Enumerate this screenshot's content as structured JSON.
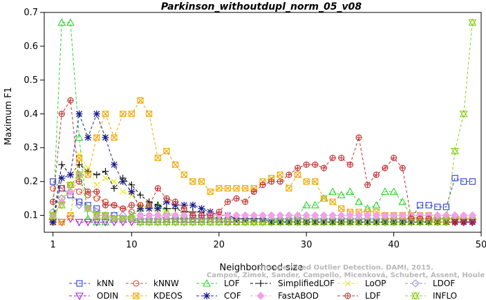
{
  "chart_data": {
    "type": "line",
    "title": "Parkinson_withoutdupl_norm_05_v08",
    "xlabel": "Neighborhood size",
    "ylabel": "Maximum F1",
    "xlim": [
      0,
      50
    ],
    "ylim": [
      0.05,
      0.7
    ],
    "xticks": [
      1,
      10,
      20,
      30,
      40,
      50
    ],
    "yticks": [
      0.1,
      0.2,
      0.3,
      0.4,
      0.5,
      0.6,
      0.7
    ],
    "grid": false,
    "legend_position": "bottom",
    "watermark": [
      "Campos, Zimek, Sander, Campello, Micenková, Schubert, Assent, Houle",
      "Unsupervised Outlier Detection. DAMI, 2015."
    ],
    "series": [
      {
        "name": "kNN",
        "color": "#2a3fd6",
        "marker": "square",
        "x": [
          1,
          2,
          3,
          4,
          5,
          6,
          7,
          8,
          9,
          10,
          11,
          12,
          13,
          14,
          15,
          16,
          17,
          18,
          19,
          20,
          21,
          22,
          23,
          24,
          25,
          26,
          27,
          28,
          29,
          30,
          31,
          32,
          33,
          34,
          35,
          36,
          37,
          38,
          39,
          40,
          41,
          42,
          43,
          44,
          45,
          46,
          47,
          48,
          49
        ],
        "y": [
          0.2,
          0.18,
          0.16,
          0.14,
          0.13,
          0.12,
          0.1,
          0.1,
          0.09,
          0.09,
          0.08,
          0.08,
          0.08,
          0.08,
          0.08,
          0.08,
          0.08,
          0.08,
          0.08,
          0.08,
          0.08,
          0.08,
          0.08,
          0.08,
          0.08,
          0.08,
          0.08,
          0.08,
          0.08,
          0.08,
          0.08,
          0.08,
          0.08,
          0.08,
          0.08,
          0.08,
          0.08,
          0.08,
          0.08,
          0.08,
          0.08,
          0.09,
          0.13,
          0.13,
          0.125,
          0.125,
          0.21,
          0.2,
          0.2
        ]
      },
      {
        "name": "kNNW",
        "color": "#e23a2a",
        "marker": "circle",
        "x": [
          1,
          2,
          3,
          4,
          5,
          6,
          7,
          8,
          9,
          10,
          11,
          12,
          13,
          14,
          15,
          16,
          17,
          18,
          19,
          20,
          21,
          22,
          23,
          24,
          25,
          26,
          27,
          28,
          29,
          30,
          31,
          32,
          33,
          34,
          35,
          36,
          37,
          38,
          39,
          40,
          41,
          42,
          43,
          44,
          45,
          46,
          47,
          48,
          49
        ],
        "y": [
          0.18,
          0.18,
          0.19,
          0.17,
          0.16,
          0.15,
          0.14,
          0.13,
          0.12,
          0.11,
          0.1,
          0.1,
          0.1,
          0.09,
          0.09,
          0.09,
          0.09,
          0.09,
          0.09,
          0.09,
          0.08,
          0.08,
          0.08,
          0.08,
          0.08,
          0.08,
          0.08,
          0.08,
          0.08,
          0.08,
          0.08,
          0.08,
          0.08,
          0.08,
          0.08,
          0.08,
          0.08,
          0.08,
          0.08,
          0.08,
          0.08,
          0.08,
          0.08,
          0.08,
          0.08,
          0.08,
          0.08,
          0.08,
          0.08
        ]
      },
      {
        "name": "LOF",
        "color": "#2ad62a",
        "marker": "triangle-up",
        "x": [
          1,
          2,
          3,
          4,
          5,
          6,
          7,
          8,
          9,
          10,
          11,
          12,
          13,
          14,
          15,
          16,
          17,
          18,
          19,
          20,
          21,
          22,
          23,
          24,
          25,
          26,
          27,
          28,
          29,
          30,
          31,
          32,
          33,
          34,
          35,
          36,
          37,
          38,
          39,
          40,
          41,
          42,
          43,
          44,
          45,
          46,
          47,
          48,
          49
        ],
        "y": [
          0.1,
          0.67,
          0.67,
          0.33,
          0.09,
          0.08,
          0.08,
          0.09,
          0.09,
          0.1,
          0.12,
          0.13,
          0.13,
          0.11,
          0.1,
          0.1,
          0.1,
          0.1,
          0.1,
          0.09,
          0.09,
          0.09,
          0.08,
          0.08,
          0.08,
          0.08,
          0.09,
          0.09,
          0.1,
          0.13,
          0.13,
          0.15,
          0.17,
          0.16,
          0.17,
          0.14,
          0.12,
          0.13,
          0.17,
          0.17,
          0.14,
          0.1,
          0.09,
          0.09,
          0.1,
          0.1,
          0.1,
          0.09,
          0.09
        ]
      },
      {
        "name": "SimplifiedLOF",
        "color": "#000000",
        "marker": "plus",
        "x": [
          1,
          2,
          3,
          4,
          5,
          6,
          7,
          8,
          9,
          10,
          11,
          12,
          13,
          14,
          15,
          16,
          17,
          18,
          19,
          20,
          21,
          22,
          23,
          24,
          25,
          26,
          27,
          28,
          29,
          30,
          31,
          32,
          33,
          34,
          35,
          36,
          37,
          38,
          39,
          40,
          41,
          42,
          43,
          44,
          45,
          46,
          47,
          48,
          49
        ],
        "y": [
          0.08,
          0.25,
          0.22,
          0.25,
          0.23,
          0.22,
          0.23,
          0.18,
          0.21,
          0.19,
          0.16,
          0.14,
          0.13,
          0.12,
          0.12,
          0.11,
          0.11,
          0.11,
          0.1,
          0.1,
          0.1,
          0.09,
          0.09,
          0.09,
          0.09,
          0.08,
          0.08,
          0.08,
          0.08,
          0.08,
          0.08,
          0.08,
          0.08,
          0.08,
          0.08,
          0.08,
          0.08,
          0.08,
          0.08,
          0.08,
          0.08,
          0.08,
          0.08,
          0.08,
          0.08,
          0.08,
          0.08,
          0.08,
          0.08
        ]
      },
      {
        "name": "LoOP",
        "color": "#e8e81a",
        "marker": "x",
        "x": [
          1,
          2,
          3,
          4,
          5,
          6,
          7,
          8,
          9,
          10,
          11,
          12,
          13,
          14,
          15,
          16,
          17,
          18,
          19,
          20,
          21,
          22,
          23,
          24,
          25,
          26,
          27,
          28,
          29,
          30,
          31,
          32,
          33,
          34,
          35,
          36,
          37,
          38,
          39,
          40,
          41,
          42,
          43,
          44,
          45,
          46,
          47,
          48,
          49
        ],
        "y": [
          0.09,
          0.15,
          0.19,
          0.28,
          0.24,
          0.19,
          0.21,
          0.2,
          0.17,
          0.16,
          0.13,
          0.12,
          0.11,
          0.11,
          0.1,
          0.1,
          0.1,
          0.09,
          0.09,
          0.09,
          0.09,
          0.09,
          0.08,
          0.08,
          0.08,
          0.08,
          0.08,
          0.08,
          0.08,
          0.08,
          0.08,
          0.08,
          0.08,
          0.08,
          0.08,
          0.08,
          0.08,
          0.08,
          0.08,
          0.08,
          0.08,
          0.08,
          0.08,
          0.08,
          0.08,
          0.08,
          0.08,
          0.08,
          0.08
        ]
      },
      {
        "name": "LDOF",
        "color": "#9a8ad8",
        "marker": "diamond",
        "x": [
          1,
          2,
          3,
          4,
          5,
          6,
          7,
          8,
          9,
          10,
          11,
          12,
          13,
          14,
          15,
          16,
          17,
          18,
          19,
          20,
          21,
          22,
          23,
          24,
          25,
          26,
          27,
          28,
          29,
          30,
          31,
          32,
          33,
          34,
          35,
          36,
          37,
          38,
          39,
          40,
          41,
          42,
          43,
          44,
          45,
          46,
          47,
          48,
          49
        ],
        "y": [
          0.11,
          0.15,
          0.17,
          0.13,
          0.12,
          0.11,
          0.1,
          0.1,
          0.1,
          0.09,
          0.09,
          0.09,
          0.09,
          0.09,
          0.09,
          0.09,
          0.09,
          0.09,
          0.09,
          0.09,
          0.09,
          0.09,
          0.09,
          0.09,
          0.09,
          0.09,
          0.09,
          0.09,
          0.09,
          0.09,
          0.09,
          0.09,
          0.09,
          0.09,
          0.09,
          0.09,
          0.09,
          0.09,
          0.09,
          0.09,
          0.09,
          0.09,
          0.09,
          0.09,
          0.09,
          0.09,
          0.09,
          0.09,
          0.09
        ]
      },
      {
        "name": "ODIN",
        "color": "#a020d8",
        "marker": "triangle-down",
        "x": [
          1,
          2,
          3,
          4,
          5,
          6,
          7,
          8,
          9,
          10,
          11,
          12,
          13,
          14,
          15,
          16,
          17,
          18,
          19,
          20,
          21,
          22,
          23,
          24,
          25,
          26,
          27,
          28,
          29,
          30,
          31,
          32,
          33,
          34,
          35,
          36,
          37,
          38,
          39,
          40,
          41,
          42,
          43,
          44,
          45,
          46,
          47,
          48,
          49
        ],
        "y": [
          0.08,
          0.08,
          0.09,
          0.08,
          0.08,
          0.08,
          0.08,
          0.08,
          0.08,
          0.08,
          0.08,
          0.08,
          0.08,
          0.08,
          0.08,
          0.08,
          0.08,
          0.08,
          0.08,
          0.08,
          0.08,
          0.08,
          0.08,
          0.08,
          0.08,
          0.08,
          0.08,
          0.08,
          0.08,
          0.08,
          0.08,
          0.08,
          0.08,
          0.08,
          0.08,
          0.08,
          0.08,
          0.08,
          0.08,
          0.08,
          0.08,
          0.08,
          0.08,
          0.08,
          0.08,
          0.08,
          0.08,
          0.08,
          0.08
        ]
      },
      {
        "name": "KDEOS",
        "color": "#f0a800",
        "marker": "square-x",
        "x": [
          1,
          2,
          3,
          4,
          5,
          6,
          7,
          8,
          9,
          10,
          11,
          12,
          13,
          14,
          15,
          16,
          17,
          18,
          19,
          20,
          21,
          22,
          23,
          24,
          25,
          26,
          27,
          28,
          29,
          30,
          31,
          32,
          33,
          34,
          35,
          36,
          37,
          38,
          39,
          40,
          41,
          42,
          43,
          44,
          45,
          46,
          47,
          48,
          49
        ],
        "y": [
          0.08,
          0.08,
          0.1,
          0.27,
          0.22,
          0.33,
          0.4,
          0.33,
          0.4,
          0.4,
          0.44,
          0.4,
          0.27,
          0.29,
          0.25,
          0.22,
          0.2,
          0.2,
          0.17,
          0.18,
          0.18,
          0.18,
          0.18,
          0.18,
          0.2,
          0.21,
          0.22,
          0.18,
          0.22,
          0.2,
          0.2,
          0.15,
          0.14,
          0.12,
          0.11,
          0.11,
          0.11,
          0.11,
          0.1,
          0.1,
          0.1,
          0.1,
          0.1,
          0.1,
          0.09,
          0.09,
          0.09,
          0.09,
          0.09
        ]
      },
      {
        "name": "COF",
        "color": "#1a1a8c",
        "marker": "asterisk",
        "x": [
          1,
          2,
          3,
          4,
          5,
          6,
          7,
          8,
          9,
          10,
          11,
          12,
          13,
          14,
          15,
          16,
          17,
          18,
          19,
          20,
          21,
          22,
          23,
          24,
          25,
          26,
          27,
          28,
          29,
          30,
          31,
          32,
          33,
          34,
          35,
          36,
          37,
          38,
          39,
          40,
          41,
          42,
          43,
          44,
          45,
          46,
          47,
          48,
          49
        ],
        "y": [
          0.08,
          0.21,
          0.22,
          0.4,
          0.33,
          0.4,
          0.33,
          0.25,
          0.2,
          0.17,
          0.12,
          0.12,
          0.12,
          0.14,
          0.13,
          0.13,
          0.13,
          0.12,
          0.11,
          0.1,
          0.1,
          0.09,
          0.09,
          0.09,
          0.09,
          0.08,
          0.08,
          0.08,
          0.08,
          0.08,
          0.08,
          0.08,
          0.08,
          0.08,
          0.08,
          0.08,
          0.08,
          0.08,
          0.08,
          0.08,
          0.08,
          0.08,
          0.08,
          0.08,
          0.08,
          0.08,
          0.08,
          0.08,
          0.08
        ]
      },
      {
        "name": "FastABOD",
        "color": "#f2a0e8",
        "marker": "diamond-filled",
        "x": [
          1,
          2,
          3,
          4,
          5,
          6,
          7,
          8,
          9,
          10,
          11,
          12,
          13,
          14,
          15,
          16,
          17,
          18,
          19,
          20,
          21,
          22,
          23,
          24,
          25,
          26,
          27,
          28,
          29,
          30,
          31,
          32,
          33,
          34,
          35,
          36,
          37,
          38,
          39,
          40,
          41,
          42,
          43,
          44,
          45,
          46,
          47,
          48,
          49
        ],
        "y": [
          0.1,
          0.14,
          0.17,
          0.22,
          0.12,
          0.1,
          0.1,
          0.09,
          0.09,
          0.09,
          0.1,
          0.1,
          0.1,
          0.1,
          0.1,
          0.1,
          0.1,
          0.1,
          0.1,
          0.1,
          0.1,
          0.1,
          0.1,
          0.1,
          0.1,
          0.1,
          0.1,
          0.1,
          0.1,
          0.1,
          0.1,
          0.1,
          0.1,
          0.1,
          0.1,
          0.1,
          0.1,
          0.1,
          0.1,
          0.1,
          0.1,
          0.1,
          0.1,
          0.1,
          0.1,
          0.1,
          0.1,
          0.1,
          0.1
        ]
      },
      {
        "name": "LDF",
        "color": "#c03030",
        "marker": "circle-plus",
        "x": [
          1,
          2,
          3,
          4,
          5,
          6,
          7,
          8,
          9,
          10,
          11,
          12,
          13,
          14,
          15,
          16,
          17,
          18,
          19,
          20,
          21,
          22,
          23,
          24,
          25,
          26,
          27,
          28,
          29,
          30,
          31,
          32,
          33,
          34,
          35,
          36,
          37,
          38,
          39,
          40,
          41,
          42,
          43,
          44,
          45,
          46,
          47,
          48,
          49
        ],
        "y": [
          0.14,
          0.4,
          0.44,
          0.2,
          0.17,
          0.17,
          0.13,
          0.13,
          0.12,
          0.13,
          0.13,
          0.13,
          0.18,
          0.15,
          0.14,
          0.12,
          0.1,
          0.1,
          0.1,
          0.11,
          0.14,
          0.15,
          0.14,
          0.17,
          0.19,
          0.2,
          0.2,
          0.22,
          0.24,
          0.25,
          0.25,
          0.24,
          0.27,
          0.27,
          0.25,
          0.33,
          0.19,
          0.22,
          0.24,
          0.27,
          0.24,
          0.09,
          0.09,
          0.09,
          0.08,
          0.08,
          0.08,
          0.08,
          0.08
        ]
      },
      {
        "name": "INFLO",
        "color": "#8ad01a",
        "marker": "hourglass",
        "x": [
          1,
          2,
          3,
          4,
          5,
          6,
          7,
          8,
          9,
          10,
          11,
          12,
          13,
          14,
          15,
          16,
          17,
          18,
          19,
          20,
          21,
          22,
          23,
          24,
          25,
          26,
          27,
          28,
          29,
          30,
          31,
          32,
          33,
          34,
          35,
          36,
          37,
          38,
          39,
          40,
          41,
          42,
          43,
          44,
          45,
          46,
          47,
          48,
          49
        ],
        "y": [
          0.1,
          0.13,
          0.19,
          0.22,
          0.12,
          0.1,
          0.1,
          0.09,
          0.09,
          0.09,
          0.08,
          0.08,
          0.08,
          0.08,
          0.08,
          0.08,
          0.08,
          0.08,
          0.08,
          0.08,
          0.08,
          0.08,
          0.08,
          0.08,
          0.08,
          0.08,
          0.08,
          0.08,
          0.08,
          0.08,
          0.08,
          0.08,
          0.08,
          0.08,
          0.08,
          0.08,
          0.08,
          0.08,
          0.08,
          0.08,
          0.08,
          0.08,
          0.08,
          0.08,
          0.08,
          0.08,
          0.29,
          0.4,
          0.67
        ]
      }
    ]
  }
}
